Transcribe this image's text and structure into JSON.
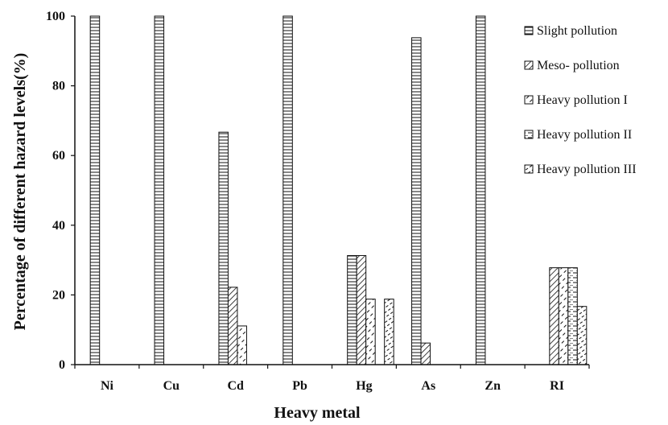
{
  "chart_data": {
    "type": "bar",
    "title": "",
    "xlabel": "Heavy metal",
    "ylabel": "Percentage of different hazard levels(%)",
    "ylim": [
      0,
      100
    ],
    "yticks": [
      0,
      20,
      40,
      60,
      80,
      100
    ],
    "grid": false,
    "legend_position": "right",
    "categories": [
      "Ni",
      "Cu",
      "Cd",
      "Pb",
      "Hg",
      "As",
      "Zn",
      "RI"
    ],
    "series": [
      {
        "name": "Slight pollution",
        "pattern": "horizontal-lines",
        "values": [
          100,
          100,
          66.7,
          100,
          31.3,
          93.8,
          100,
          0
        ]
      },
      {
        "name": "Meso- pollution",
        "pattern": "diagonal-lines",
        "values": [
          0,
          0,
          22.2,
          0,
          31.3,
          6.2,
          0,
          27.8
        ]
      },
      {
        "name": "Heavy pollution I",
        "pattern": "dashed-diagonal",
        "values": [
          0,
          0,
          11.1,
          0,
          18.8,
          0,
          0,
          27.8
        ]
      },
      {
        "name": "Heavy pollution II",
        "pattern": "horizontal-dashes",
        "values": [
          0,
          0,
          0,
          0,
          0,
          0,
          0,
          27.8
        ]
      },
      {
        "name": "Heavy pollution III",
        "pattern": "dashed-diagonal-dense",
        "values": [
          0,
          0,
          0,
          0,
          18.8,
          0,
          0,
          16.7
        ]
      }
    ]
  }
}
